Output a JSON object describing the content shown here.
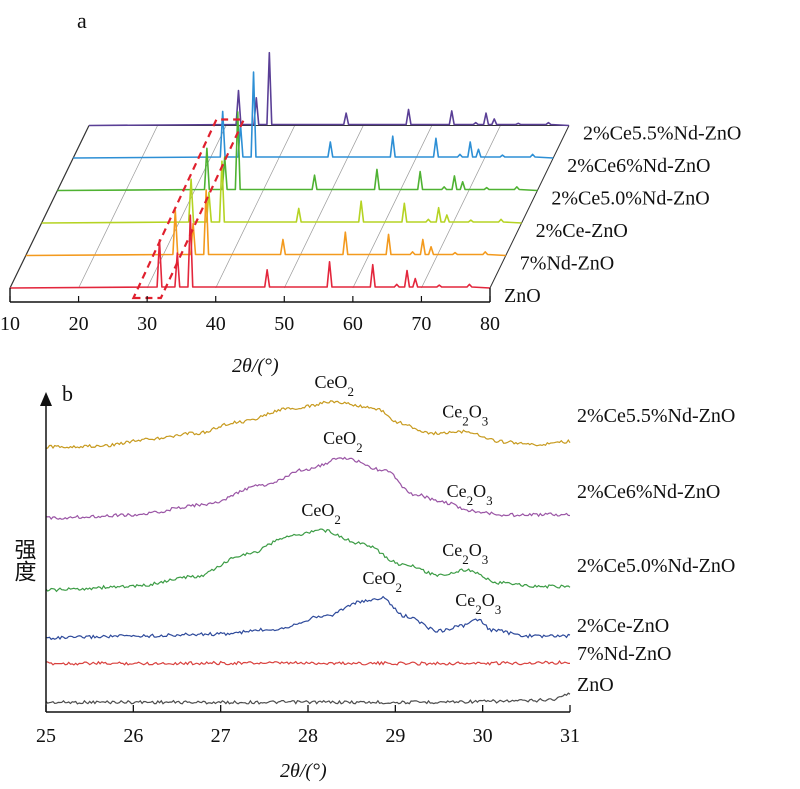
{
  "chart_data": [
    {
      "panel": "a",
      "type": "line",
      "style": "3d-waterfall",
      "xlabel": "2θ/(°)",
      "xlim": [
        10,
        80
      ],
      "xticks": [
        "10",
        "20",
        "30",
        "40",
        "50",
        "60",
        "70",
        "80"
      ],
      "highlight_range_x": [
        28,
        32
      ],
      "series": [
        {
          "name": "ZnO",
          "color": "#e3263c",
          "peaks": [
            [
              31.8,
              0.66
            ],
            [
              34.4,
              0.48
            ],
            [
              36.3,
              1.0
            ],
            [
              47.5,
              0.25
            ],
            [
              56.6,
              0.36
            ],
            [
              62.9,
              0.32
            ],
            [
              66.4,
              0.05
            ],
            [
              67.9,
              0.24
            ],
            [
              69.1,
              0.13
            ],
            [
              72.6,
              0.04
            ],
            [
              77.0,
              0.05
            ]
          ]
        },
        {
          "name": "7%Nd-ZnO",
          "color": "#f39a1e",
          "peaks": [
            [
              31.8,
              0.62
            ],
            [
              34.4,
              0.44
            ],
            [
              36.3,
              0.9
            ],
            [
              47.5,
              0.22
            ],
            [
              56.6,
              0.32
            ],
            [
              62.9,
              0.29
            ],
            [
              66.4,
              0.05
            ],
            [
              67.9,
              0.22
            ],
            [
              69.1,
              0.12
            ],
            [
              72.6,
              0.04
            ],
            [
              77.0,
              0.05
            ]
          ]
        },
        {
          "name": "2%Ce-ZnO",
          "color": "#b5d323",
          "peaks": [
            [
              31.8,
              0.6
            ],
            [
              34.4,
              0.42
            ],
            [
              36.3,
              0.85
            ],
            [
              47.5,
              0.2
            ],
            [
              56.6,
              0.3
            ],
            [
              62.9,
              0.27
            ],
            [
              66.4,
              0.05
            ],
            [
              67.9,
              0.21
            ],
            [
              69.1,
              0.11
            ],
            [
              72.6,
              0.04
            ],
            [
              77.0,
              0.05
            ]
          ]
        },
        {
          "name": "2%Ce5.0%Nd-ZnO",
          "color": "#4fb232",
          "peaks": [
            [
              31.8,
              0.58
            ],
            [
              34.4,
              0.46
            ],
            [
              36.3,
              1.08
            ],
            [
              47.5,
              0.21
            ],
            [
              56.6,
              0.29
            ],
            [
              62.9,
              0.26
            ],
            [
              66.4,
              0.05
            ],
            [
              67.9,
              0.2
            ],
            [
              69.1,
              0.12
            ],
            [
              72.6,
              0.04
            ],
            [
              77.0,
              0.05
            ]
          ]
        },
        {
          "name": "2%Ce6%Nd-ZnO",
          "color": "#2d8fd5",
          "peaks": [
            [
              31.8,
              0.64
            ],
            [
              34.4,
              0.46
            ],
            [
              36.3,
              1.18
            ],
            [
              47.5,
              0.22
            ],
            [
              56.6,
              0.3
            ],
            [
              62.9,
              0.27
            ],
            [
              66.4,
              0.05
            ],
            [
              67.9,
              0.22
            ],
            [
              69.1,
              0.12
            ],
            [
              72.6,
              0.04
            ],
            [
              77.0,
              0.05
            ]
          ]
        },
        {
          "name": "2%Ce5.5%Nd-ZnO",
          "color": "#5a3f96",
          "peaks": [
            [
              31.8,
              0.48
            ],
            [
              34.4,
              0.38
            ],
            [
              36.3,
              1.0
            ],
            [
              47.5,
              0.17
            ],
            [
              56.6,
              0.22
            ],
            [
              62.9,
              0.2
            ],
            [
              66.4,
              0.04
            ],
            [
              67.9,
              0.17
            ],
            [
              69.1,
              0.09
            ],
            [
              72.6,
              0.03
            ],
            [
              77.0,
              0.04
            ]
          ]
        }
      ]
    },
    {
      "panel": "b",
      "type": "line",
      "xlabel": "2θ/(°)",
      "ylabel": "强度",
      "xlim": [
        25,
        31
      ],
      "xticks": [
        "25",
        "26",
        "27",
        "28",
        "29",
        "30",
        "31"
      ],
      "series": [
        {
          "name": "ZnO",
          "color": "#4d4d4d",
          "points": [
            [
              25,
              0.02
            ],
            [
              26,
              0.03
            ],
            [
              27,
              0.02
            ],
            [
              28,
              0.03
            ],
            [
              29,
              0.02
            ],
            [
              30,
              0.05
            ],
            [
              30.5,
              0.07
            ],
            [
              30.8,
              0.12
            ],
            [
              31,
              0.3
            ]
          ]
        },
        {
          "name": "7%Nd-ZnO",
          "color": "#d9413e",
          "points": [
            [
              25,
              0.02
            ],
            [
              26,
              0.02
            ],
            [
              27,
              0.03
            ],
            [
              28,
              0.03
            ],
            [
              29,
              0.02
            ],
            [
              30,
              0.02
            ],
            [
              31,
              0.05
            ]
          ]
        },
        {
          "name": "2%Ce-ZnO",
          "color": "#2e4a9b",
          "points": [
            [
              25,
              0.0
            ],
            [
              26,
              0.05
            ],
            [
              27,
              0.1
            ],
            [
              27.6,
              0.22
            ],
            [
              28.2,
              0.55
            ],
            [
              28.6,
              0.9
            ],
            [
              28.85,
              1.0
            ],
            [
              29.1,
              0.55
            ],
            [
              29.5,
              0.18
            ],
            [
              29.75,
              0.3
            ],
            [
              29.95,
              0.45
            ],
            [
              30.1,
              0.2
            ],
            [
              30.5,
              0.05
            ],
            [
              31,
              0.05
            ]
          ]
        },
        {
          "name": "2%Ce5.0%Nd-ZnO",
          "color": "#3c9c45",
          "points": [
            [
              25,
              0.0
            ],
            [
              26,
              0.06
            ],
            [
              26.7,
              0.22
            ],
            [
              27.3,
              0.6
            ],
            [
              27.8,
              0.9
            ],
            [
              28.15,
              1.0
            ],
            [
              28.6,
              0.78
            ],
            [
              29.1,
              0.42
            ],
            [
              29.5,
              0.25
            ],
            [
              29.8,
              0.33
            ],
            [
              30.2,
              0.12
            ],
            [
              30.6,
              0.06
            ],
            [
              31,
              0.06
            ]
          ]
        },
        {
          "name": "2%Ce6%Nd-ZnO",
          "color": "#9a55a5",
          "points": [
            [
              25,
              0.0
            ],
            [
              26,
              0.05
            ],
            [
              26.8,
              0.22
            ],
            [
              27.5,
              0.55
            ],
            [
              28.0,
              0.82
            ],
            [
              28.4,
              1.0
            ],
            [
              28.9,
              0.78
            ],
            [
              29.2,
              0.4
            ],
            [
              29.6,
              0.25
            ],
            [
              29.85,
              0.12
            ],
            [
              30.3,
              0.05
            ],
            [
              31,
              0.06
            ]
          ]
        },
        {
          "name": "2%Ce5.5%Nd-ZnO",
          "color": "#c79a1e",
          "points": [
            [
              25,
              0.0
            ],
            [
              25.6,
              0.02
            ],
            [
              26.2,
              0.18
            ],
            [
              26.7,
              0.3
            ],
            [
              27.2,
              0.55
            ],
            [
              27.8,
              0.85
            ],
            [
              28.3,
              1.0
            ],
            [
              28.8,
              0.85
            ],
            [
              29.0,
              0.55
            ],
            [
              29.4,
              0.3
            ],
            [
              29.8,
              0.35
            ],
            [
              30.2,
              0.12
            ],
            [
              30.6,
              0.05
            ],
            [
              31,
              0.12
            ]
          ]
        }
      ],
      "annotations": [
        {
          "series": "2%Ce5.5%Nd-ZnO",
          "x": 28.3,
          "label": "CeO",
          "sub": "2"
        },
        {
          "series": "2%Ce5.5%Nd-ZnO",
          "x": 29.8,
          "label": "Ce",
          "sub": "2",
          "tail": "O",
          "sub2": "3"
        },
        {
          "series": "2%Ce6%Nd-ZnO",
          "x": 28.4,
          "label": "CeO",
          "sub": "2"
        },
        {
          "series": "2%Ce6%Nd-ZnO",
          "x": 29.85,
          "label": "Ce",
          "sub": "2",
          "tail": "O",
          "sub2": "3"
        },
        {
          "series": "2%Ce5.0%Nd-ZnO",
          "x": 28.15,
          "label": "CeO",
          "sub": "2"
        },
        {
          "series": "2%Ce5.0%Nd-ZnO",
          "x": 29.8,
          "label": "Ce",
          "sub": "2",
          "tail": "O",
          "sub2": "3"
        },
        {
          "series": "2%Ce-ZnO",
          "x": 28.85,
          "label": "CeO",
          "sub": "2"
        },
        {
          "series": "2%Ce-ZnO",
          "x": 29.95,
          "label": "Ce",
          "sub": "2",
          "tail": "O",
          "sub2": "3"
        }
      ]
    }
  ]
}
